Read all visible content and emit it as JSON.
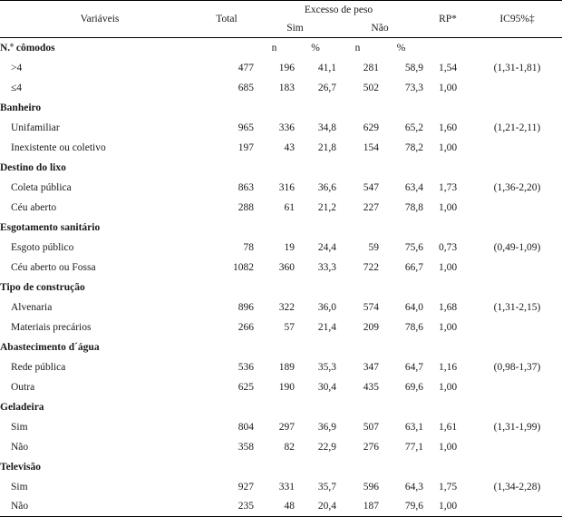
{
  "headers": {
    "variaveis": "Variáveis",
    "total": "Total",
    "excesso": "Excesso de peso",
    "sim": "Sim",
    "nao": "Não",
    "rp": "RP*",
    "ic": "IC95%‡",
    "n": "n",
    "pct": "%"
  },
  "sections": [
    {
      "title": "N.º cômodos",
      "rows": [
        {
          "label": ">4",
          "total": "477",
          "sim_n": "196",
          "sim_pct": "41,1",
          "nao_n": "281",
          "nao_pct": "58,9",
          "rp": "1,54",
          "ic": "(1,31-1,81)"
        },
        {
          "label": "≤4",
          "total": "685",
          "sim_n": "183",
          "sim_pct": "26,7",
          "nao_n": "502",
          "nao_pct": "73,3",
          "rp": "1,00",
          "ic": ""
        }
      ]
    },
    {
      "title": "Banheiro",
      "rows": [
        {
          "label": "Unifamiliar",
          "total": "965",
          "sim_n": "336",
          "sim_pct": "34,8",
          "nao_n": "629",
          "nao_pct": "65,2",
          "rp": "1,60",
          "ic": "(1,21-2,11)"
        },
        {
          "label": "Inexistente ou coletivo",
          "total": "197",
          "sim_n": "43",
          "sim_pct": "21,8",
          "nao_n": "154",
          "nao_pct": "78,2",
          "rp": "1,00",
          "ic": ""
        }
      ]
    },
    {
      "title": "Destino do lixo",
      "rows": [
        {
          "label": "Coleta pública",
          "total": "863",
          "sim_n": "316",
          "sim_pct": "36,6",
          "nao_n": "547",
          "nao_pct": "63,4",
          "rp": "1,73",
          "ic": "(1,36-2,20)"
        },
        {
          "label": "Céu aberto",
          "total": "288",
          "sim_n": "61",
          "sim_pct": "21,2",
          "nao_n": "227",
          "nao_pct": "78,8",
          "rp": "1,00",
          "ic": ""
        }
      ]
    },
    {
      "title": "Esgotamento sanitário",
      "rows": [
        {
          "label": "Esgoto público",
          "total": "78",
          "sim_n": "19",
          "sim_pct": "24,4",
          "nao_n": "59",
          "nao_pct": "75,6",
          "rp": "0,73",
          "ic": "(0,49-1,09)"
        },
        {
          "label": "Céu aberto ou Fossa",
          "total": "1082",
          "sim_n": "360",
          "sim_pct": "33,3",
          "nao_n": "722",
          "nao_pct": "66,7",
          "rp": "1,00",
          "ic": ""
        }
      ]
    },
    {
      "title": "Tipo de construção",
      "rows": [
        {
          "label": "Alvenaria",
          "total": "896",
          "sim_n": "322",
          "sim_pct": "36,0",
          "nao_n": "574",
          "nao_pct": "64,0",
          "rp": "1,68",
          "ic": "(1,31-2,15)"
        },
        {
          "label": "Materiais precários",
          "total": "266",
          "sim_n": "57",
          "sim_pct": "21,4",
          "nao_n": "209",
          "nao_pct": "78,6",
          "rp": "1,00",
          "ic": ""
        }
      ]
    },
    {
      "title": "Abastecimento d´água",
      "rows": [
        {
          "label": "Rede pública",
          "total": "536",
          "sim_n": "189",
          "sim_pct": "35,3",
          "nao_n": "347",
          "nao_pct": "64,7",
          "rp": "1,16",
          "ic": "(0,98-1,37)"
        },
        {
          "label": "Outra",
          "total": "625",
          "sim_n": "190",
          "sim_pct": "30,4",
          "nao_n": "435",
          "nao_pct": "69,6",
          "rp": "1,00",
          "ic": ""
        }
      ]
    },
    {
      "title": "Geladeira",
      "rows": [
        {
          "label": "Sim",
          "total": "804",
          "sim_n": "297",
          "sim_pct": "36,9",
          "nao_n": "507",
          "nao_pct": "63,1",
          "rp": "1,61",
          "ic": "(1,31-1,99)"
        },
        {
          "label": "Não",
          "total": "358",
          "sim_n": "82",
          "sim_pct": "22,9",
          "nao_n": "276",
          "nao_pct": "77,1",
          "rp": "1,00",
          "ic": ""
        }
      ]
    },
    {
      "title": "Televisão",
      "rows": [
        {
          "label": "Sim",
          "total": "927",
          "sim_n": "331",
          "sim_pct": "35,7",
          "nao_n": "596",
          "nao_pct": "64,3",
          "rp": "1,75",
          "ic": "(1,34-2,28)"
        },
        {
          "label": "Não",
          "total": "235",
          "sim_n": "48",
          "sim_pct": "20,4",
          "nao_n": "187",
          "nao_pct": "79,6",
          "rp": "1,00",
          "ic": ""
        }
      ]
    }
  ]
}
